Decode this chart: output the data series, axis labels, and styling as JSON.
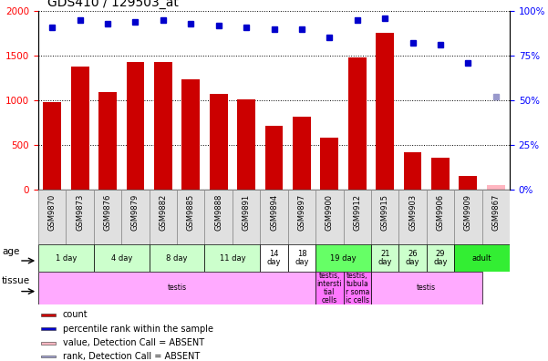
{
  "title": "GDS410 / 129503_at",
  "samples": [
    "GSM9870",
    "GSM9873",
    "GSM9876",
    "GSM9879",
    "GSM9882",
    "GSM9885",
    "GSM9888",
    "GSM9891",
    "GSM9894",
    "GSM9897",
    "GSM9900",
    "GSM9912",
    "GSM9915",
    "GSM9903",
    "GSM9906",
    "GSM9909",
    "GSM9867"
  ],
  "counts": [
    975,
    1375,
    1090,
    1430,
    1430,
    1230,
    1070,
    1010,
    710,
    815,
    580,
    1480,
    1760,
    420,
    360,
    155,
    50
  ],
  "absent_count_idx": [
    16
  ],
  "percentile_ranks": [
    91,
    95,
    93,
    94,
    95,
    93,
    92,
    91,
    90,
    90,
    85,
    95,
    96,
    82,
    81,
    71,
    52
  ],
  "absent_rank_idx": [
    16
  ],
  "bar_color": "#cc0000",
  "absent_bar_color": "#ffb6c1",
  "dot_color": "#0000cc",
  "absent_dot_color": "#9999cc",
  "ylim_left": [
    0,
    2000
  ],
  "ylim_right": [
    0,
    100
  ],
  "yticks_left": [
    0,
    500,
    1000,
    1500,
    2000
  ],
  "yticks_right": [
    0,
    25,
    50,
    75,
    100
  ],
  "ytick_labels_right": [
    "0%",
    "25%",
    "50%",
    "75%",
    "100%"
  ],
  "age_groups": [
    {
      "label": "1 day",
      "cols": [
        0,
        1
      ],
      "color": "#ccffcc"
    },
    {
      "label": "4 day",
      "cols": [
        2,
        3
      ],
      "color": "#ccffcc"
    },
    {
      "label": "8 day",
      "cols": [
        4,
        5
      ],
      "color": "#ccffcc"
    },
    {
      "label": "11 day",
      "cols": [
        6,
        7
      ],
      "color": "#ccffcc"
    },
    {
      "label": "14\nday",
      "cols": [
        8
      ],
      "color": "#ffffff"
    },
    {
      "label": "18\nday",
      "cols": [
        9
      ],
      "color": "#ffffff"
    },
    {
      "label": "19 day",
      "cols": [
        10,
        11
      ],
      "color": "#66ff66"
    },
    {
      "label": "21\nday",
      "cols": [
        12
      ],
      "color": "#ccffcc"
    },
    {
      "label": "26\nday",
      "cols": [
        13
      ],
      "color": "#ccffcc"
    },
    {
      "label": "29\nday",
      "cols": [
        14
      ],
      "color": "#ccffcc"
    },
    {
      "label": "adult",
      "cols": [
        15,
        16
      ],
      "color": "#33ee33"
    }
  ],
  "tissue_groups": [
    {
      "label": "testis",
      "cols": [
        0,
        1,
        2,
        3,
        4,
        5,
        6,
        7,
        8,
        9
      ],
      "color": "#ffaaff"
    },
    {
      "label": "testis,\nintersti\ntial\ncells",
      "cols": [
        10
      ],
      "color": "#ff77ff"
    },
    {
      "label": "testis,\ntubula\nr soma\nic cells",
      "cols": [
        11
      ],
      "color": "#ff77ff"
    },
    {
      "label": "testis",
      "cols": [
        12,
        13,
        14,
        15
      ],
      "color": "#ffaaff"
    }
  ],
  "legend_items": [
    {
      "label": "count",
      "color": "#cc0000"
    },
    {
      "label": "percentile rank within the sample",
      "color": "#0000cc"
    },
    {
      "label": "value, Detection Call = ABSENT",
      "color": "#ffb6c1"
    },
    {
      "label": "rank, Detection Call = ABSENT",
      "color": "#aaaadd"
    }
  ],
  "fig_width": 6.01,
  "fig_height": 3.96,
  "dpi": 100
}
